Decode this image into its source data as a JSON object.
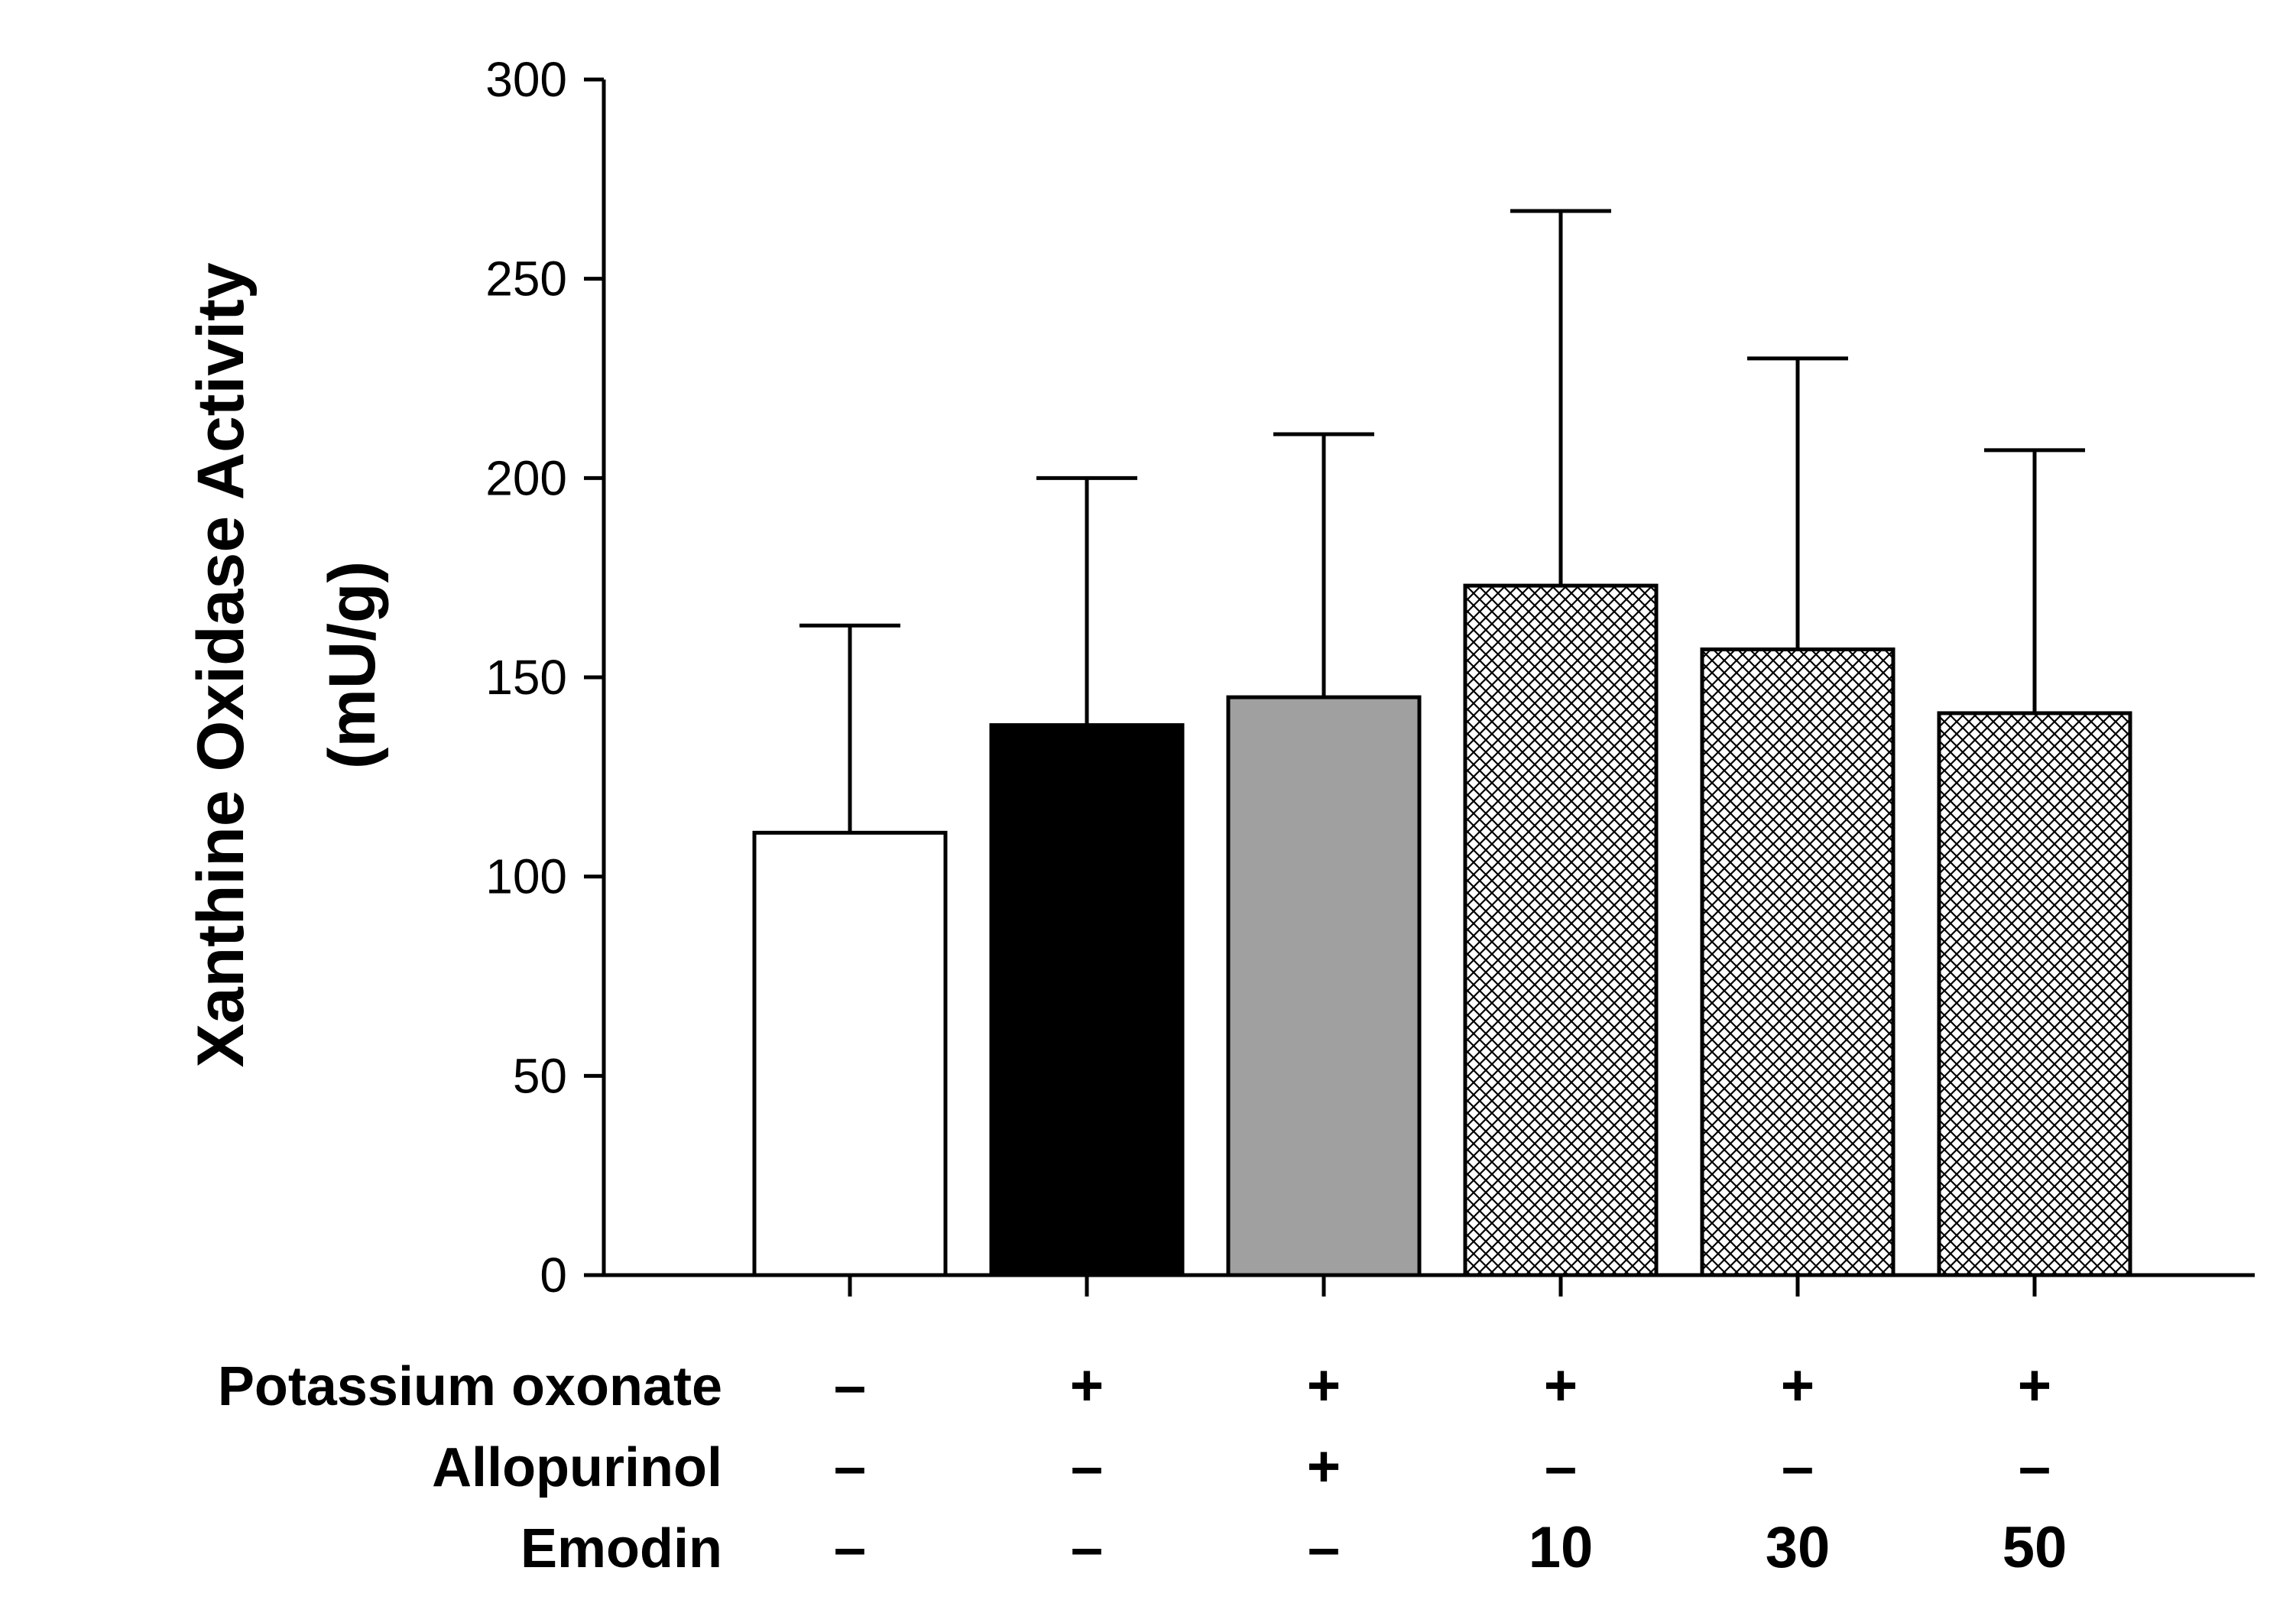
{
  "chart_data": {
    "type": "bar",
    "title": "",
    "xlabel": "",
    "ylabel_line1": "Xanthine Oxidase Activity",
    "ylabel_line2": "(mU/g)",
    "ylim": [
      0,
      300
    ],
    "yticks": [
      "0",
      "50",
      "100",
      "150",
      "200",
      "250",
      "300"
    ],
    "groups": [
      {
        "value": 111,
        "error": 52,
        "fill": "white"
      },
      {
        "value": 138,
        "error": 62,
        "fill": "black"
      },
      {
        "value": 145,
        "error": 66,
        "fill": "gray"
      },
      {
        "value": 173,
        "error": 94,
        "fill": "crosshatch"
      },
      {
        "value": 157,
        "error": 73,
        "fill": "crosshatch"
      },
      {
        "value": 141,
        "error": 66,
        "fill": "crosshatch"
      }
    ],
    "treatment_rows": [
      {
        "label": "Potassium oxonate",
        "values": [
          "–",
          "+",
          "+",
          "+",
          "+",
          "+"
        ]
      },
      {
        "label": "Allopurinol",
        "values": [
          "–",
          "–",
          "+",
          "–",
          "–",
          "–"
        ]
      },
      {
        "label": "Emodin",
        "values": [
          "–",
          "–",
          "–",
          "10",
          "30",
          "50"
        ]
      }
    ],
    "colors": {
      "white": "#ffffff",
      "black": "#000000",
      "gray": "#a0a0a0",
      "axis": "#000000"
    }
  }
}
